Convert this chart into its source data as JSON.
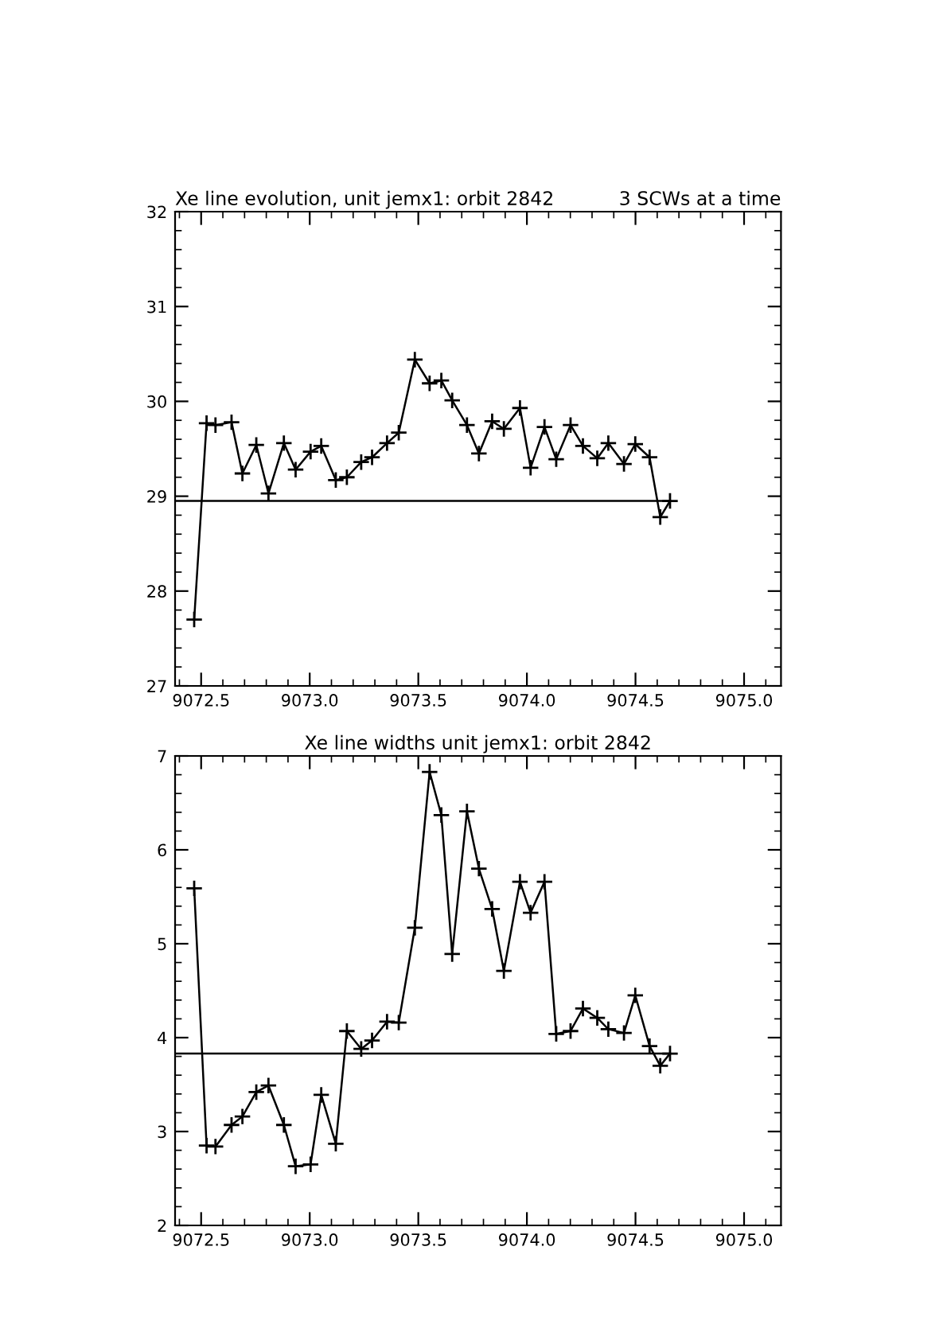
{
  "chart_data": [
    {
      "type": "line",
      "title": "Xe line evolution, unit jemx1: orbit 2842",
      "subtitle": "3 SCWs at a time",
      "marker": "cross",
      "line_style": "solid",
      "xlim": [
        9072.38,
        9075.17
      ],
      "xticks": [
        {
          "value": 9072.5,
          "label": "9072.5"
        },
        {
          "value": 9073,
          "label": "9073.0"
        },
        {
          "value": 9073.5,
          "label": "9073.5"
        },
        {
          "value": 9074,
          "label": "9074.0"
        },
        {
          "value": 9074.5,
          "label": "9074.5"
        },
        {
          "value": 9075,
          "label": "9075.0"
        }
      ],
      "ylim": [
        27,
        32
      ],
      "yticks": [
        27,
        28,
        29,
        30,
        31,
        32
      ],
      "ref_lines": [
        {
          "axis": "y",
          "value": 28.95,
          "color": "#000000"
        }
      ],
      "series": [
        {
          "color": "#000000",
          "x": [
            9072.468,
            9072.525,
            9072.566,
            9072.64,
            9072.69,
            9072.754,
            9072.81,
            9072.881,
            9072.935,
            9073.004,
            9073.053,
            9073.12,
            9073.171,
            9073.237,
            9073.287,
            9073.356,
            9073.41,
            9073.484,
            9073.552,
            9073.606,
            9073.656,
            9073.724,
            9073.779,
            9073.84,
            9073.894,
            9073.968,
            9074.017,
            9074.081,
            9074.135,
            9074.201,
            9074.258,
            9074.324,
            9074.375,
            9074.447,
            9074.499,
            9074.565,
            9074.614,
            9074.659
          ],
          "values": [
            27.7,
            29.77,
            29.75,
            29.78,
            29.24,
            29.54,
            29.03,
            29.56,
            29.28,
            29.47,
            29.53,
            29.17,
            29.2,
            29.36,
            29.41,
            29.56,
            29.67,
            30.44,
            30.19,
            30.22,
            30.01,
            29.75,
            29.45,
            29.79,
            29.71,
            29.93,
            29.3,
            29.73,
            29.39,
            29.75,
            29.53,
            29.4,
            29.56,
            29.34,
            29.55,
            29.41,
            28.78,
            28.95
          ]
        }
      ]
    },
    {
      "type": "line",
      "title": "Xe line widths unit jemx1: orbit 2842",
      "marker": "cross",
      "line_style": "solid",
      "xlim": [
        9072.38,
        9075.17
      ],
      "xticks": [
        {
          "value": 9072.5,
          "label": "9072.5"
        },
        {
          "value": 9073,
          "label": "9073.0"
        },
        {
          "value": 9073.5,
          "label": "9073.5"
        },
        {
          "value": 9074,
          "label": "9074.0"
        },
        {
          "value": 9074.5,
          "label": "9074.5"
        },
        {
          "value": 9075,
          "label": "9075.0"
        }
      ],
      "ylim": [
        2,
        7
      ],
      "yticks": [
        2,
        3,
        4,
        5,
        6,
        7
      ],
      "ref_lines": [
        {
          "axis": "y",
          "value": 3.83,
          "color": "#000000"
        }
      ],
      "series": [
        {
          "color": "#000000",
          "x": [
            9072.468,
            9072.525,
            9072.566,
            9072.64,
            9072.69,
            9072.754,
            9072.81,
            9072.881,
            9072.935,
            9073.004,
            9073.053,
            9073.12,
            9073.171,
            9073.237,
            9073.287,
            9073.356,
            9073.41,
            9073.484,
            9073.552,
            9073.606,
            9073.656,
            9073.724,
            9073.779,
            9073.84,
            9073.894,
            9073.968,
            9074.017,
            9074.081,
            9074.135,
            9074.201,
            9074.258,
            9074.324,
            9074.375,
            9074.447,
            9074.499,
            9074.565,
            9074.614,
            9074.659
          ],
          "values": [
            5.59,
            2.85,
            2.84,
            3.07,
            3.16,
            3.42,
            3.49,
            3.07,
            2.63,
            2.65,
            3.39,
            2.87,
            4.07,
            3.88,
            3.97,
            4.17,
            4.16,
            5.17,
            6.83,
            6.37,
            4.89,
            6.41,
            5.8,
            5.37,
            4.71,
            5.66,
            5.33,
            5.66,
            4.04,
            4.07,
            4.31,
            4.21,
            4.09,
            4.05,
            4.45,
            3.91,
            3.7,
            3.83
          ]
        }
      ]
    }
  ]
}
